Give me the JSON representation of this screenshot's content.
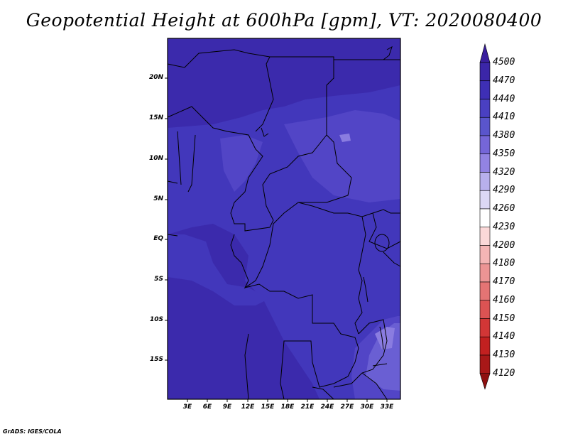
{
  "title": "Geopotential Height at 600hPa [gpm], VT: 2020080400",
  "credit": "GrADS: IGES/COLA",
  "lat_labels": [
    "20N",
    "15N",
    "10N",
    "5N",
    "EQ",
    "5S",
    "10S",
    "15S"
  ],
  "lon_labels": [
    "3E",
    "6E",
    "9E",
    "12E",
    "15E",
    "18E",
    "21E",
    "24E",
    "27E",
    "30E",
    "33E"
  ],
  "colorbar": {
    "levels": [
      "4500",
      "4470",
      "4440",
      "4410",
      "4380",
      "4350",
      "4320",
      "4290",
      "4260",
      "4230",
      "4200",
      "4180",
      "4170",
      "4160",
      "4150",
      "4140",
      "4130",
      "4120"
    ],
    "colors": [
      "#3a1f9e",
      "#3b26a8",
      "#3e2fb5",
      "#4a40c2",
      "#5a55cc",
      "#7566d8",
      "#9283e2",
      "#b8b0ec",
      "#dcd8f5",
      "#ffffff",
      "#fbd8d8",
      "#f4b5b5",
      "#ec9494",
      "#e47474",
      "#dc5353",
      "#d23636",
      "#c22020",
      "#a81818",
      "#8f1010"
    ]
  },
  "map": {
    "field_colors": {
      "h4440": "#3b2aac",
      "h4410": "#4237bb",
      "h4380": "#5245c6",
      "h4350": "#6a5fd3",
      "h4320": "#8a7ce0"
    },
    "border_color": "#000000"
  }
}
